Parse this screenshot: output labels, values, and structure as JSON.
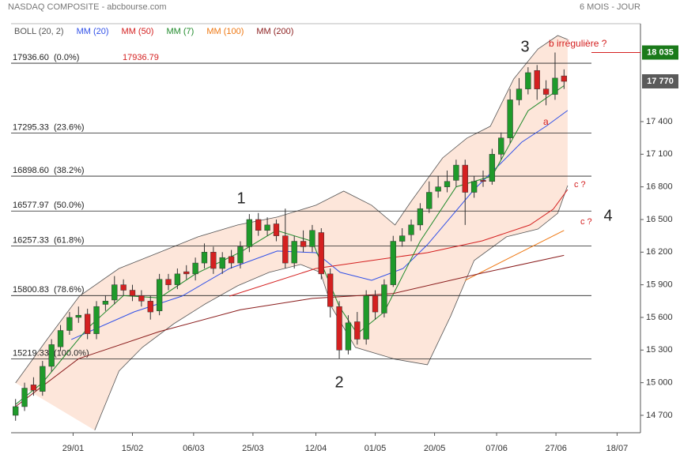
{
  "chart_data": {
    "type": "candlestick",
    "title": "NASDAQ COMPOSITE - abcbourse.com",
    "subtitle": "6 MOIS - JOUR",
    "up_color": "#1f9a2a",
    "down_color": "#d42020",
    "open": [
      14700,
      14780,
      14980,
      14920,
      15150,
      15330,
      15480,
      15600,
      15630,
      15450,
      15720,
      15760,
      15900,
      15850,
      15800,
      15750,
      15660,
      15950,
      15900,
      16020,
      16000,
      16100,
      16200,
      16050,
      16160,
      16100,
      16250,
      16500,
      16400,
      16460,
      16350,
      16100,
      16300,
      16250,
      16380,
      16000,
      15700,
      15300,
      15560,
      15400,
      15800,
      15640,
      15900,
      16300,
      16360,
      16450,
      16600,
      16760,
      16800,
      16860,
      17000,
      16750,
      16860,
      16850,
      17100,
      17250,
      17600,
      17700,
      17870,
      17700,
      17650,
      17820
    ],
    "high": [
      14850,
      15000,
      15050,
      15200,
      15400,
      15530,
      15650,
      15700,
      15680,
      15750,
      15800,
      15980,
      15950,
      15900,
      15850,
      15800,
      16000,
      16000,
      16050,
      16080,
      16150,
      16280,
      16250,
      16200,
      16220,
      16300,
      16550,
      16560,
      16520,
      16500,
      16600,
      16350,
      16400,
      16450,
      16420,
      16050,
      15750,
      15620,
      15650,
      15850,
      15850,
      15950,
      16350,
      16420,
      16500,
      16650,
      16850,
      16900,
      16950,
      17050,
      17050,
      16900,
      16950,
      17150,
      17300,
      17700,
      17800,
      17900,
      17920,
      17780,
      18035,
      17880
    ],
    "low": [
      14650,
      14740,
      14880,
      14880,
      15100,
      15290,
      15440,
      15550,
      15400,
      15400,
      15660,
      15720,
      15800,
      15750,
      15700,
      15580,
      15620,
      15850,
      15860,
      15950,
      15940,
      16050,
      16000,
      16000,
      16050,
      16050,
      16200,
      16350,
      16350,
      16300,
      16050,
      16050,
      16200,
      16200,
      15950,
      15600,
      15220,
      15260,
      15350,
      15350,
      15580,
      15600,
      15880,
      16250,
      16300,
      16400,
      16560,
      16700,
      16750,
      16800,
      16450,
      16700,
      16800,
      16820,
      17050,
      17200,
      17550,
      17650,
      17600,
      17550,
      17600,
      17700
    ],
    "close": [
      14780,
      14950,
      14930,
      15150,
      15350,
      15480,
      15600,
      15620,
      15450,
      15700,
      15750,
      15900,
      15850,
      15800,
      15750,
      15650,
      15950,
      15900,
      16000,
      16000,
      16100,
      16200,
      16050,
      16150,
      16100,
      16250,
      16500,
      16400,
      16450,
      16350,
      16100,
      16300,
      16250,
      16400,
      16000,
      15700,
      15300,
      15550,
      15400,
      15800,
      15650,
      15900,
      16300,
      16350,
      16450,
      16600,
      16750,
      16800,
      16850,
      17000,
      16750,
      16850,
      16850,
      17100,
      17250,
      17600,
      17700,
      17850,
      17700,
      17650,
      17800,
      17770
    ],
    "bands": {
      "name": "BOLL (20, 2)",
      "color": "#555555",
      "fill": "#fde6da",
      "upper": {
        "x": [
          0,
          3.5,
          7.1,
          11.5,
          15.9,
          20.3,
          24.7,
          29.1,
          33.4,
          36.5,
          39.6,
          42.2,
          44,
          47.5,
          50.2,
          52.8,
          55.4,
          58.1,
          60.3,
          61.4
        ],
        "values": [
          14998,
          15397,
          15796,
          16050,
          16195,
          16341,
          16450,
          16522,
          16631,
          16761,
          16631,
          16450,
          16667,
          17066,
          17248,
          17357,
          17792,
          18068,
          18191,
          18155
        ]
      },
      "lower": {
        "x": [
          8.8,
          11.5,
          14.1,
          17.6,
          21.1,
          24.7,
          28.2,
          31.7,
          33.9,
          35.2,
          37.8,
          42.2,
          45.8,
          48.4,
          51,
          54.6,
          58.1,
          60.3,
          61.4
        ],
        "values": [
          14563,
          15107,
          15325,
          15542,
          15724,
          15891,
          16014,
          16087,
          16014,
          15687,
          15325,
          15216,
          15165,
          15615,
          16123,
          16341,
          16413,
          16558,
          16812
        ]
      }
    },
    "series": [
      {
        "name": "MM (20)",
        "color": "#3050e8",
        "x": [
          6.2,
          13.2,
          18.5,
          23.8,
          29.1,
          33.4,
          36.1,
          39.6,
          43.1,
          45.8,
          48.4,
          51,
          53.7,
          56.3,
          59,
          61.4
        ],
        "values": [
          15397,
          15651,
          15796,
          16050,
          16210,
          16195,
          16014,
          15941,
          16050,
          16268,
          16522,
          16776,
          16994,
          17211,
          17357,
          17502
        ]
      },
      {
        "name": "MM (50)",
        "color": "#d42020",
        "x": [
          23.8,
          33.4,
          39.6,
          45.8,
          51.9,
          57.2,
          59.8,
          61.4
        ],
        "values": [
          15796,
          16050,
          16123,
          16195,
          16304,
          16450,
          16595,
          16776
        ]
      },
      {
        "name": "MM (7)",
        "color": "#1f8a2a",
        "x": [
          0,
          3,
          8,
          12,
          16,
          20,
          25,
          29,
          33,
          36,
          38,
          41,
          45,
          49,
          53,
          57,
          61
        ],
        "values": [
          14800,
          15000,
          15500,
          15800,
          15780,
          16000,
          16200,
          16400,
          16300,
          15700,
          15450,
          15650,
          16300,
          16800,
          16900,
          17500,
          17730
        ]
      },
      {
        "name": "MM (100)",
        "color": "#ee7711",
        "x": [
          50,
          55,
          61
        ],
        "values": [
          15940,
          16150,
          16400
        ]
      },
      {
        "name": "MM (200)",
        "color": "#8a1c1c",
        "x": [
          0,
          7,
          16,
          25,
          33,
          42,
          52,
          61
        ],
        "values": [
          14780,
          15220,
          15470,
          15670,
          15775,
          15820,
          16010,
          16170
        ]
      }
    ],
    "levels": [
      {
        "value": 17936.6,
        "label": "17936.60  (0.0%)"
      },
      {
        "value": 17295.33,
        "label": "17295.33  (23.6%)"
      },
      {
        "value": 16898.6,
        "label": "16898.60  (38.2%)"
      },
      {
        "value": 16577.97,
        "label": "16577.97  (50.0%)"
      },
      {
        "value": 16257.33,
        "label": "16257.33  (61.8%)"
      },
      {
        "value": 15800.83,
        "label": "15800.83  (78.6%)"
      },
      {
        "value": 15219.33,
        "label": "15219.33  (100.0%)"
      }
    ],
    "level_note": 17936.79,
    "price_tags": [
      {
        "value": 18035,
        "label": "18 035",
        "color": "#1a7a1a"
      },
      {
        "value": 17770,
        "label": "17 770",
        "color": "#5a5a5a"
      }
    ],
    "annotations": [
      "1",
      "2",
      "3",
      "4",
      "b irrégulière ?",
      "a",
      "c ?",
      "c ?"
    ],
    "xlim": [
      -0.5,
      69.5
    ],
    "xticks": [
      {
        "value": 6.4,
        "label": "29/01"
      },
      {
        "value": 13,
        "label": "15/02"
      },
      {
        "value": 19.8,
        "label": "06/03"
      },
      {
        "value": 26.4,
        "label": "25/03"
      },
      {
        "value": 33.4,
        "label": "12/04"
      },
      {
        "value": 40,
        "label": "01/05"
      },
      {
        "value": 46.6,
        "label": "20/05"
      },
      {
        "value": 53.5,
        "label": "07/06"
      },
      {
        "value": 60.1,
        "label": "27/06"
      },
      {
        "value": 66.9,
        "label": "18/07"
      }
    ],
    "ylim": [
      14540,
      18300
    ],
    "yticks": [
      {
        "value": 14700,
        "label": "14 700"
      },
      {
        "value": 15000,
        "label": "15 000"
      },
      {
        "value": 15300,
        "label": "15 300"
      },
      {
        "value": 15600,
        "label": "15 600"
      },
      {
        "value": 15900,
        "label": "15 900"
      },
      {
        "value": 16200,
        "label": "16 200"
      },
      {
        "value": 16500,
        "label": "16 500"
      },
      {
        "value": 16800,
        "label": "16 800"
      },
      {
        "value": 17100,
        "label": "17 100"
      },
      {
        "value": 17400,
        "label": "17 400"
      }
    ]
  }
}
